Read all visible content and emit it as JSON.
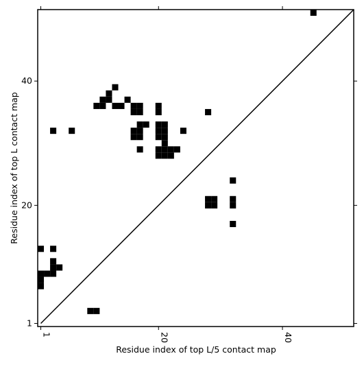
{
  "chart_data": {
    "type": "heatmap-cells",
    "color": "#000000",
    "x_label": "Residue index of top L/5 contact map",
    "y_label": "Residue index of top L contact map",
    "xlim": [
      0.5,
      51.5
    ],
    "ylim": [
      0.5,
      51.5
    ],
    "xticks": [
      1,
      20,
      40
    ],
    "yticks": [
      1,
      20,
      40
    ],
    "x": [
      45,
      13,
      12,
      11,
      12,
      10,
      11,
      13,
      14,
      15,
      16,
      17,
      16,
      17,
      20,
      20,
      28,
      3,
      6,
      16,
      17,
      16,
      17,
      17,
      18,
      20,
      21,
      20,
      21,
      20,
      21,
      21,
      24,
      17,
      20,
      21,
      22,
      23,
      20,
      21,
      22,
      32,
      28,
      29,
      28,
      29,
      32,
      32,
      32,
      1,
      3,
      3,
      3,
      4,
      1,
      2,
      3,
      1,
      1,
      9,
      10
    ],
    "values": [
      51,
      39,
      38,
      37,
      37,
      36,
      36,
      36,
      36,
      37,
      35,
      35,
      36,
      36,
      35,
      36,
      35,
      32,
      32,
      32,
      32,
      31,
      31,
      33,
      33,
      33,
      33,
      32,
      32,
      31,
      31,
      30,
      32,
      29,
      29,
      29,
      29,
      29,
      28,
      28,
      28,
      24,
      20,
      20,
      21,
      21,
      20,
      21,
      17,
      13,
      13,
      11,
      10,
      10,
      9,
      9,
      9,
      8,
      7,
      3,
      3
    ]
  }
}
